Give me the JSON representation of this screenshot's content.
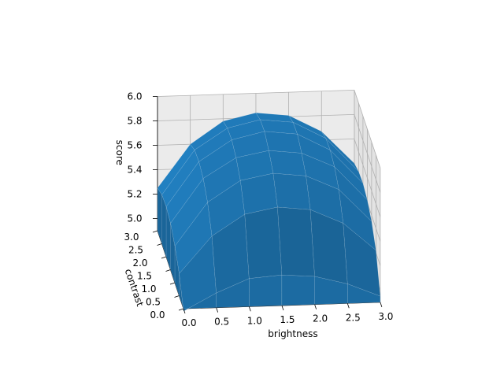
{
  "chart_data": {
    "type": "surface",
    "title": "",
    "xlabel": "brightness",
    "ylabel": "contrast",
    "zlabel": "score",
    "xlim": [
      0.0,
      3.0
    ],
    "ylim": [
      0.0,
      3.0
    ],
    "zlim": [
      4.9,
      6.0
    ],
    "xticks": [
      "0.0",
      "0.5",
      "1.0",
      "1.5",
      "2.0",
      "2.5",
      "3.0"
    ],
    "yticks": [
      "0.0",
      "0.5",
      "1.0",
      "1.5",
      "2.0",
      "2.5",
      "3.0"
    ],
    "zticks": [
      "5.0",
      "5.2",
      "5.4",
      "5.6",
      "5.8",
      "6.0"
    ],
    "grid": true,
    "surface_color": "#1f77b4",
    "x": [
      0.0,
      0.5,
      1.0,
      1.5,
      2.0,
      2.5,
      3.0
    ],
    "y": [
      0.0,
      0.5,
      1.0,
      1.5,
      2.0,
      2.5,
      3.0
    ],
    "z": [
      [
        4.88,
        5.02,
        5.13,
        5.15,
        5.13,
        5.06,
        4.95
      ],
      [
        5.08,
        5.38,
        5.55,
        5.6,
        5.57,
        5.45,
        5.22
      ],
      [
        5.2,
        5.55,
        5.72,
        5.77,
        5.74,
        5.62,
        5.35
      ],
      [
        5.28,
        5.64,
        5.8,
        5.85,
        5.82,
        5.7,
        5.42
      ],
      [
        5.31,
        5.67,
        5.84,
        5.9,
        5.87,
        5.73,
        5.45
      ],
      [
        5.3,
        5.66,
        5.83,
        5.89,
        5.86,
        5.72,
        5.44
      ],
      [
        5.25,
        5.6,
        5.78,
        5.84,
        5.81,
        5.67,
        5.4
      ]
    ]
  }
}
